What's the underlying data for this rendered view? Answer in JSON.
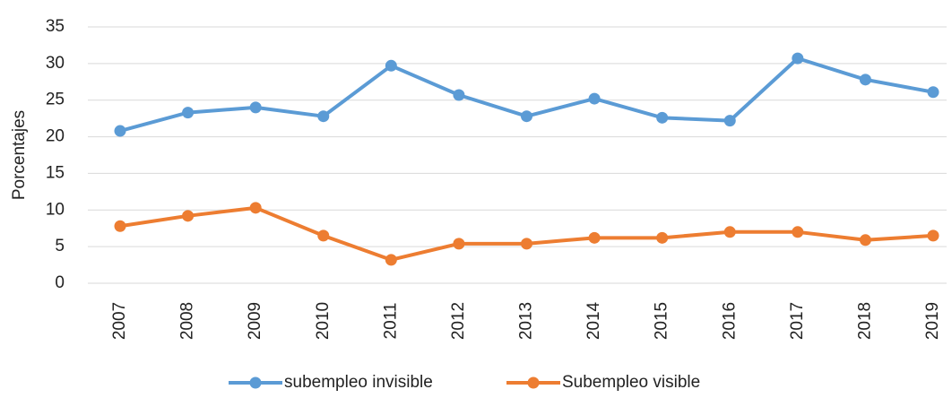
{
  "chart_data": {
    "type": "line",
    "y_label": "Porcentajes",
    "categories": [
      "2007",
      "2008",
      "2009",
      "2010",
      "2011",
      "2012",
      "2013",
      "2014",
      "2015",
      "2016",
      "2017",
      "2018",
      "2019"
    ],
    "series": [
      {
        "name": "subempleo invisible",
        "color": "#5b9bd5",
        "values": [
          20.8,
          23.3,
          24.0,
          22.8,
          29.7,
          25.7,
          22.8,
          25.2,
          22.6,
          22.2,
          30.7,
          27.8,
          26.1
        ]
      },
      {
        "name": "Subempleo visible",
        "color": "#ed7d31",
        "values": [
          7.8,
          9.2,
          10.3,
          6.5,
          3.2,
          5.4,
          5.4,
          6.2,
          6.2,
          7.0,
          7.0,
          5.9,
          6.5
        ]
      }
    ],
    "ylim": [
      0,
      35
    ],
    "yticks": [
      0,
      5,
      10,
      15,
      20,
      25,
      30,
      35
    ],
    "grid": true,
    "legend": "bottom"
  }
}
